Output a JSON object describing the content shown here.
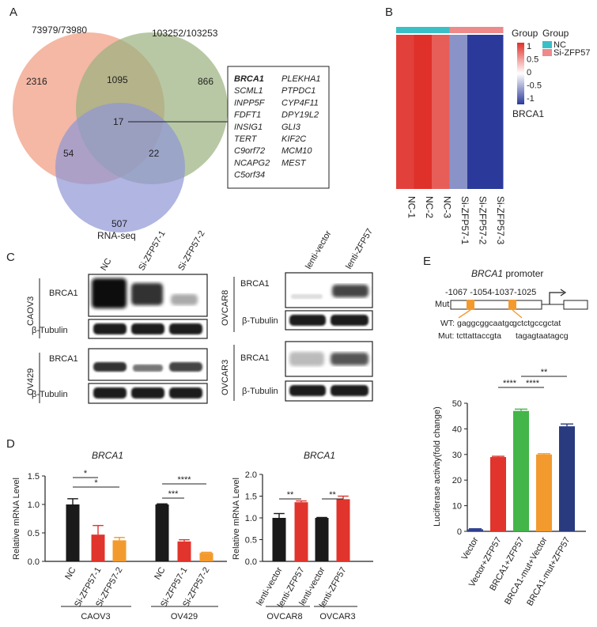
{
  "panels": {
    "a": "A",
    "b": "B",
    "c": "C",
    "d": "D",
    "e": "E"
  },
  "venn": {
    "set1_label": "73979/73980",
    "set2_label": "103252/103253",
    "set3_label": "RNA-seq",
    "only1": "2316",
    "only2": "866",
    "only3": "507",
    "i12": "1095",
    "i13": "54",
    "i23": "22",
    "i123": "17",
    "colors": {
      "set1": "#ef9a7f",
      "set2": "#9ab07e",
      "set3": "#8f96d6"
    },
    "genes_left": [
      "BRCA1",
      "SCML1",
      "INPP5F",
      "FDFT1",
      "INSIG1",
      "TERT",
      "C9orf72",
      "NCAPG2",
      "C5orf34"
    ],
    "genes_right": [
      "PLEKHA1",
      "PTPDC1",
      "CYP4F11",
      "DPY19L2",
      "GLI3",
      "KIF2C",
      "MCM10",
      "MEST"
    ]
  },
  "heatmap": {
    "group_label": "Group",
    "legend_title": "Group",
    "legend_items": [
      {
        "name": "NC",
        "color": "#3bbfc6"
      },
      {
        "name": "Si-ZFP57",
        "color": "#ee8a8a"
      }
    ],
    "scale_ticks": [
      "1",
      "0.5",
      "0",
      "-0.5",
      "-1"
    ],
    "row_label": "BRCA1",
    "columns": [
      "NC-1",
      "NC-2",
      "NC-3",
      "Si-ZFP57-1",
      "Si-ZFP57-2",
      "Si-ZFP57-3"
    ],
    "values": [
      0.92,
      1.0,
      0.78,
      -0.55,
      -1.0,
      -1.0
    ]
  },
  "western": {
    "left_lanes": [
      "NC",
      "Si-ZFP57-1",
      "Si-ZFP57-2"
    ],
    "right_lanes": [
      "lenti-vector",
      "lenti-ZFP57"
    ],
    "protein": "BRCA1",
    "loading": "β-Tubulin",
    "cells_left": [
      "CAOV3",
      "OV429"
    ],
    "cells_right": [
      "OVCAR8",
      "OVCAR3"
    ]
  },
  "chart_data": [
    {
      "type": "bar",
      "title": "BRCA1",
      "ylabel": "Relative mRNA Level",
      "ylim": [
        0,
        1.5
      ],
      "yticks": [
        "0.0",
        "0.5",
        "1.0",
        "1.5"
      ],
      "categories": [
        "NC",
        "Si-ZFP57-1",
        "Si-ZFP57-2",
        "NC",
        "Si-ZFP57-1",
        "Si-ZFP57-2"
      ],
      "values": [
        1.0,
        0.47,
        0.37,
        1.0,
        0.35,
        0.15
      ],
      "errors": [
        0.1,
        0.16,
        0.05,
        0.01,
        0.03,
        0.01
      ],
      "colors": [
        "#1a1a1a",
        "#e0342c",
        "#f39a2e",
        "#1a1a1a",
        "#e0342c",
        "#f39a2e"
      ],
      "groups": [
        "CAOV3",
        "OV429"
      ],
      "significance": [
        "*",
        "*",
        "***",
        "****"
      ]
    },
    {
      "type": "bar",
      "title": "BRCA1",
      "ylabel": "Relative mRNA Level",
      "ylim": [
        0,
        2.0
      ],
      "yticks": [
        "0.0",
        "0.5",
        "1.0",
        "1.5",
        "2.0"
      ],
      "categories": [
        "lenti-vector",
        "lenti-ZFP57",
        "lenti-vector",
        "lenti-ZFP57"
      ],
      "values": [
        1.0,
        1.36,
        1.0,
        1.43
      ],
      "errors": [
        0.1,
        0.03,
        0.01,
        0.07
      ],
      "colors": [
        "#1a1a1a",
        "#e0342c",
        "#1a1a1a",
        "#e0342c"
      ],
      "groups": [
        "OVCAR8",
        "OVCAR3"
      ],
      "significance": [
        "**",
        "**"
      ]
    },
    {
      "type": "bar",
      "title": "",
      "ylabel": "Luciferase activity(fold change)",
      "ylim": [
        0,
        50
      ],
      "yticks": [
        "0",
        "10",
        "20",
        "30",
        "40",
        "50"
      ],
      "categories": [
        "Vector",
        "Vector+ZFP57",
        "BRCA1+ZFP57",
        "BRCA1-mut+Vector",
        "BRCA1-mut+ZFP57"
      ],
      "values": [
        0.8,
        29,
        47,
        30,
        41
      ],
      "errors": [
        0.2,
        0.3,
        0.7,
        0.3,
        0.9
      ],
      "colors": [
        "#2e3f8f",
        "#e0342c",
        "#43b549",
        "#f39a2e",
        "#2a3a7e"
      ],
      "significance": [
        "****",
        "****",
        "**"
      ]
    }
  ],
  "promoter": {
    "title_gene": "BRCA1",
    "title_rest": " promoter",
    "site1": "-1067 -1054",
    "site2": "-1037-1025",
    "mut_label": "Mut",
    "wt_label": "WT:",
    "mut_seq_label": "Mut:",
    "wt_seq1": "gaggcggcaatgc",
    "wt_seq2": "gctctgccgctat",
    "mut_seq1": "tcttattaccgta",
    "mut_seq2": "tagagtaatagcg"
  }
}
